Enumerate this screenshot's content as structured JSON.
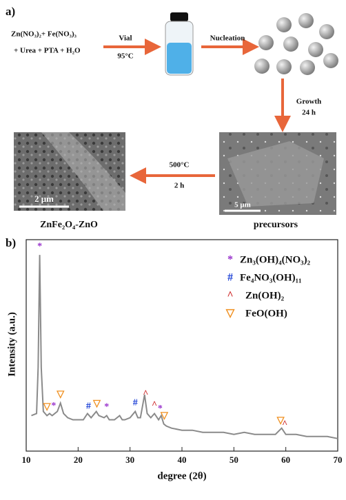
{
  "panel_a": {
    "label": "a)",
    "reactants_line1": "Zn(NO₃)₂+ Fe(NO₃)₃",
    "reactants_line2": "+ Urea + PTA + H₂O",
    "step1_top": "Vial",
    "step1_bottom": "95°C",
    "step2": "Nucleation",
    "step3_top": "Growth",
    "step3_bottom": "24 h",
    "step4_top": "500°C",
    "step4_bottom": "2 h",
    "scale_left": "2 μm",
    "scale_right": "5 μm",
    "caption_left": "ZnFe₂O₄-ZnO",
    "caption_right": "precursors"
  },
  "chart_data": {
    "type": "line",
    "panel_label": "b)",
    "xlabel": "degree (2θ)",
    "ylabel": "Intensity (a.u.)",
    "xlim": [
      10,
      70
    ],
    "xticks": [
      10,
      20,
      30,
      40,
      50,
      60,
      70
    ],
    "ylim": [
      0,
      100
    ],
    "color": "#8a8a8a",
    "x": [
      11,
      12,
      12.3,
      12.6,
      12.9,
      13.3,
      14,
      14.5,
      15,
      15.5,
      16,
      16.6,
      17.2,
      18,
      19,
      20,
      21,
      21.8,
      22.5,
      23.5,
      24,
      25,
      25.5,
      26,
      27,
      28,
      28.5,
      29,
      30,
      31,
      31.5,
      32,
      32.8,
      33.3,
      34,
      34.7,
      35.5,
      36,
      36.5,
      37,
      38,
      40,
      42,
      44,
      46,
      48,
      50,
      52,
      54,
      56,
      58,
      59.2,
      60,
      62,
      64,
      66,
      68,
      70
    ],
    "values": [
      17,
      18,
      40,
      94,
      40,
      19,
      17,
      18,
      17,
      18,
      19,
      23,
      18,
      16,
      15,
      15,
      15,
      18,
      16,
      19,
      17,
      16,
      17,
      15,
      15,
      17,
      15,
      15,
      16,
      19,
      16,
      16,
      27,
      18,
      16,
      18,
      15,
      17,
      13,
      12,
      11,
      10,
      10,
      9,
      9,
      9,
      8,
      9,
      8,
      8,
      8,
      11,
      8,
      8,
      7,
      7,
      7,
      6
    ],
    "annotations": [
      {
        "name": "Zn₃(OH)₄(NO₃)₂",
        "symbol": "*",
        "color": "#9933cc",
        "x": [
          12.6,
          15.3,
          25.5,
          35.8
        ]
      },
      {
        "name": "Fe₄NO₃(OH)₁₁",
        "symbol": "#",
        "color": "#1a3fd6",
        "x": [
          22,
          31
        ]
      },
      {
        "name": "Zn(OH)₂",
        "symbol": "^",
        "color": "#cc2222",
        "x": [
          33,
          34.7,
          59.8
        ]
      },
      {
        "name": "FeO(OH)",
        "symbol": "▽",
        "color": "#f09020",
        "x": [
          14,
          16.6,
          23.6,
          36.6,
          59
        ]
      }
    ]
  }
}
